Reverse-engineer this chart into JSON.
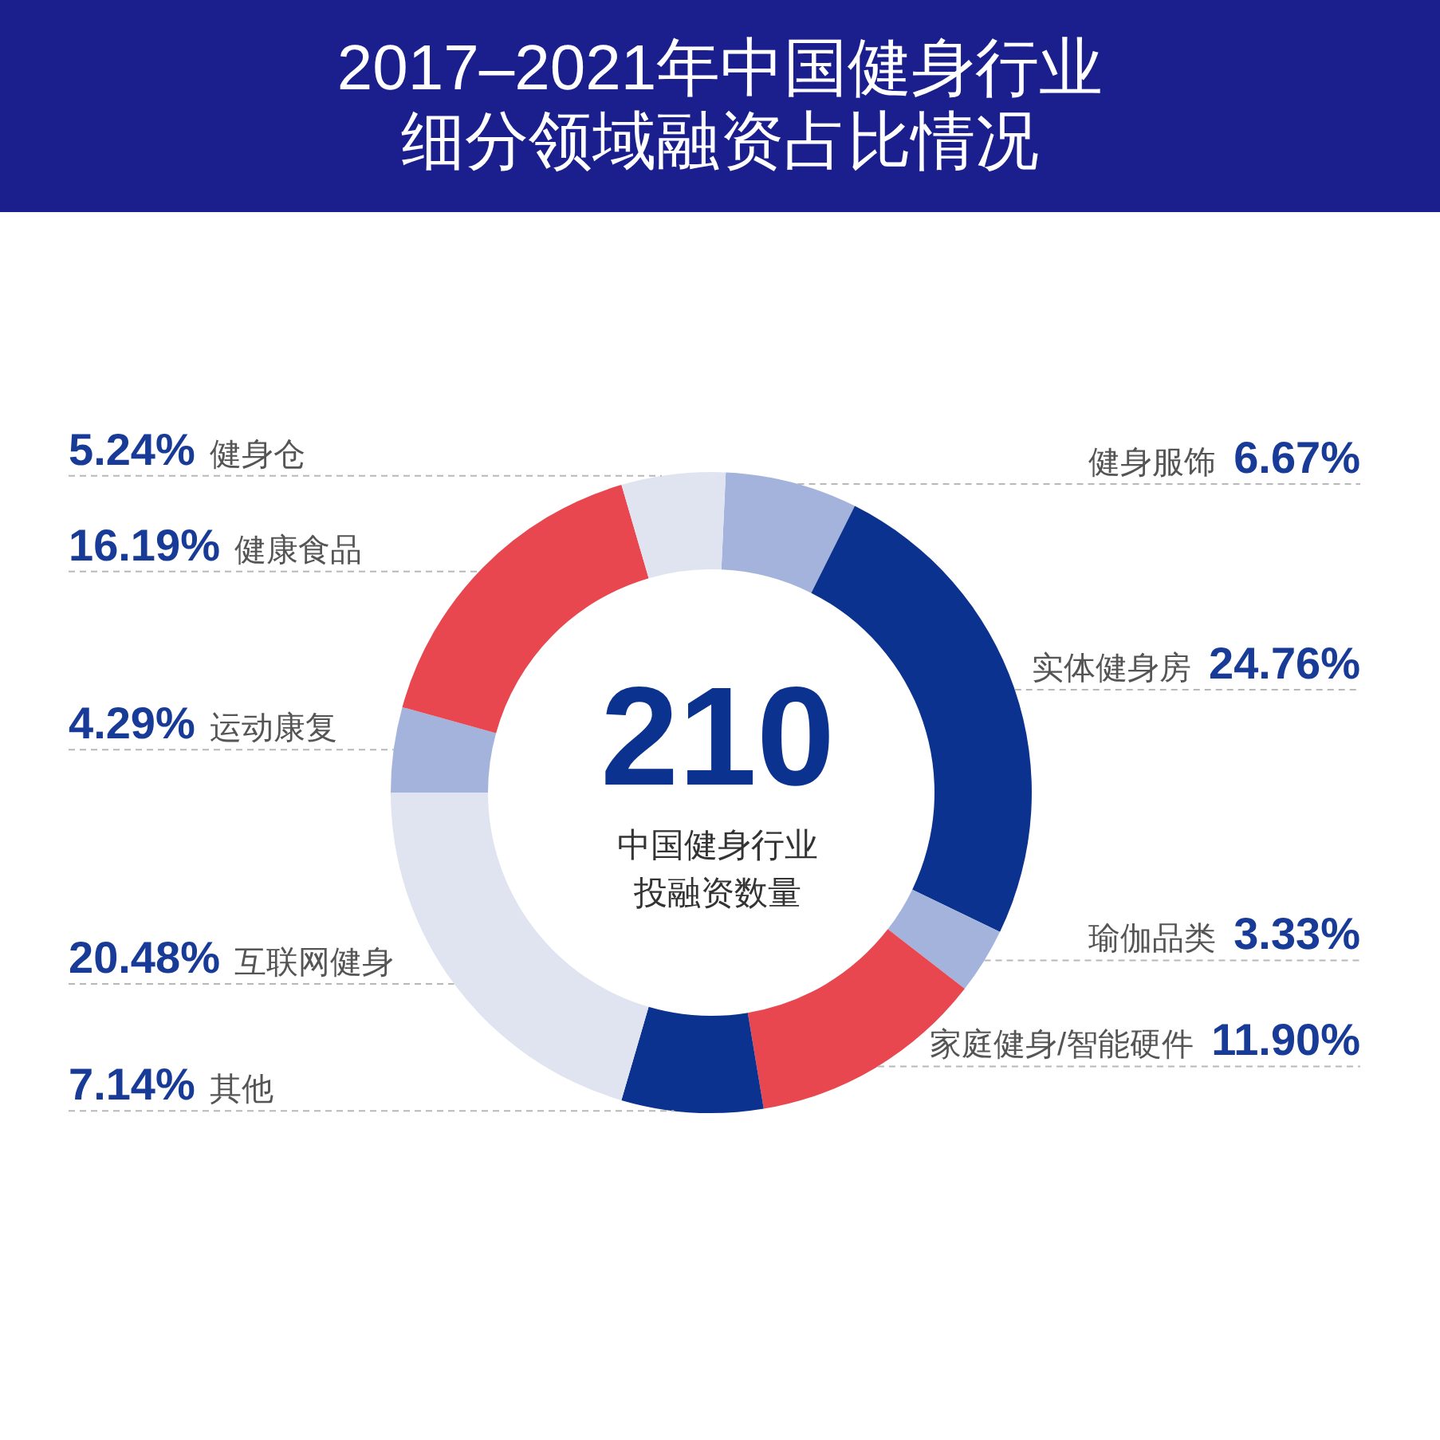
{
  "chart_data": {
    "type": "donut",
    "title": "2017–2021年中国健身行业细分领域融资占比情况",
    "categories": [
      "健身服饰",
      "实体健身房",
      "瑜伽品类",
      "家庭健身/智能硬件",
      "其他",
      "互联网健身",
      "运动康复",
      "健康食品",
      "健身仓"
    ],
    "values": [
      6.67,
      24.76,
      3.33,
      11.9,
      7.14,
      20.48,
      4.29,
      16.19,
      5.24
    ],
    "value_labels": [
      "6.67%",
      "24.76%",
      "3.33%",
      "11.90%",
      "7.14%",
      "20.48%",
      "4.29%",
      "16.19%",
      "5.24%"
    ],
    "colors": [
      "#a3b3dc",
      "#0c3290",
      "#a3b3dc",
      "#e8474f",
      "#0c3290",
      "#e0e4f0",
      "#a3b3dc",
      "#e8474f",
      "#e0e4f0"
    ],
    "annotations": [
      "210",
      "中国健身行业投融资数量"
    ]
  }
}
